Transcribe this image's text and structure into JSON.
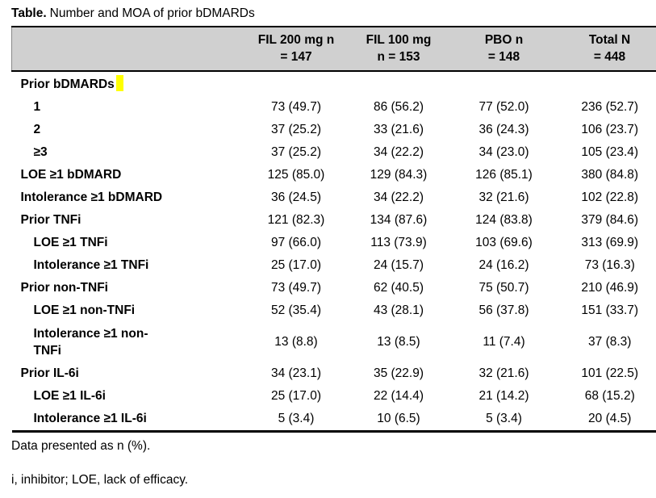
{
  "title": {
    "prefix": "Table.",
    "text": "Number and MOA of prior bDMARDs"
  },
  "colors": {
    "header_bg": "#d0d0d0",
    "highlight": "#ffff00",
    "border": "#000000",
    "text": "#000000"
  },
  "table": {
    "header": {
      "row_label_column": "",
      "columns": [
        {
          "line1": "FIL 200 mg n",
          "line2": "= 147"
        },
        {
          "line1": "FIL 100 mg",
          "line2": "n = 153"
        },
        {
          "line1": "PBO n",
          "line2": "= 148"
        },
        {
          "line1": "Total N",
          "line2": "= 448"
        }
      ]
    },
    "rows": [
      {
        "label": "Prior bDMARDs",
        "indent": 0,
        "highlight": true,
        "values": [
          "",
          "",
          "",
          ""
        ]
      },
      {
        "label": "1",
        "indent": 1,
        "values": [
          "73 (49.7)",
          "86 (56.2)",
          "77 (52.0)",
          "236 (52.7)"
        ]
      },
      {
        "label": "2",
        "indent": 1,
        "values": [
          "37 (25.2)",
          "33 (21.6)",
          "36 (24.3)",
          "106 (23.7)"
        ]
      },
      {
        "label": "≥3",
        "indent": 1,
        "values": [
          "37 (25.2)",
          "34 (22.2)",
          "34 (23.0)",
          "105 (23.4)"
        ]
      },
      {
        "label": "LOE ≥1 bDMARD",
        "indent": 0,
        "values": [
          "125 (85.0)",
          "129 (84.3)",
          "126 (85.1)",
          "380 (84.8)"
        ]
      },
      {
        "label": "Intolerance ≥1 bDMARD",
        "indent": 0,
        "values": [
          "36 (24.5)",
          "34 (22.2)",
          "32 (21.6)",
          "102 (22.8)"
        ]
      },
      {
        "label": "Prior TNFi",
        "indent": 0,
        "values": [
          "121 (82.3)",
          "134 (87.6)",
          "124 (83.8)",
          "379 (84.6)"
        ]
      },
      {
        "label": "LOE ≥1 TNFi",
        "indent": 1,
        "values": [
          "97 (66.0)",
          "113 (73.9)",
          "103 (69.6)",
          "313 (69.9)"
        ]
      },
      {
        "label": "Intolerance ≥1 TNFi",
        "indent": 1,
        "values": [
          "25 (17.0)",
          "24 (15.7)",
          "24 (16.2)",
          "73 (16.3)"
        ]
      },
      {
        "label": "Prior non-TNFi",
        "indent": 0,
        "values": [
          "73 (49.7)",
          "62 (40.5)",
          "75 (50.7)",
          "210 (46.9)"
        ]
      },
      {
        "label": "LOE ≥1 non-TNFi",
        "indent": 1,
        "values": [
          "52 (35.4)",
          "43 (28.1)",
          "56 (37.8)",
          "151 (33.7)"
        ]
      },
      {
        "label": "Intolerance ≥1 non-TNFi",
        "indent": 1,
        "two_line": true,
        "values": [
          "13 (8.8)",
          "13 (8.5)",
          "11 (7.4)",
          "37 (8.3)"
        ]
      },
      {
        "label": "Prior IL-6i",
        "indent": 0,
        "values": [
          "34 (23.1)",
          "35 (22.9)",
          "32 (21.6)",
          "101 (22.5)"
        ]
      },
      {
        "label": "LOE ≥1 IL-6i",
        "indent": 1,
        "values": [
          "25 (17.0)",
          "22 (14.4)",
          "21 (14.2)",
          "68 (15.2)"
        ]
      },
      {
        "label": "Intolerance ≥1 IL-6i",
        "indent": 1,
        "values": [
          "5 (3.4)",
          "10 (6.5)",
          "5 (3.4)",
          "20 (4.5)"
        ]
      }
    ]
  },
  "footnotes": [
    "Data presented as n (%).",
    "i, inhibitor; LOE, lack of efficacy."
  ]
}
